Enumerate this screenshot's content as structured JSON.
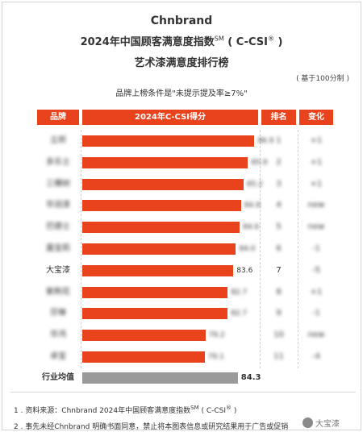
{
  "header": {
    "brand": "Chnbrand",
    "title_line1": "2024年中国顾客满意度指数",
    "title_sm": "SM",
    "title_code": "( C-CSI",
    "title_reg": "®",
    "title_close": " )",
    "title_line2": "艺术漆满意度排行榜",
    "basis": "( 基于100分制 )",
    "condition": "品牌上榜条件是\"未提示提及率≥7%\""
  },
  "table_headers": {
    "brand": "品牌",
    "score": "2024年C-CSI得分",
    "rank": "排名",
    "change": "变化"
  },
  "colors": {
    "accent": "#e8431c",
    "average_bar": "#9a9a9a"
  },
  "chart_data": {
    "type": "bar",
    "orientation": "horizontal",
    "title": "艺术漆满意度排行榜",
    "categories": [
      "立邦",
      "多乐士",
      "三棵树",
      "华润漆",
      "巴德士",
      "嘉宝莉",
      "大宝漆",
      "紫荆花",
      "芬琳",
      "华鸿",
      "卓宝",
      "行业均值"
    ],
    "values": [
      86.9,
      85.9,
      85.2,
      84.8,
      84.6,
      84.0,
      83.6,
      82.7,
      82.7,
      79.2,
      79.1,
      84.3
    ],
    "ranks": [
      "1",
      "2",
      "3",
      "4",
      "5",
      "6",
      "7",
      "8",
      "9",
      "10",
      "11",
      ""
    ],
    "changes": [
      "+1",
      "+1",
      "+1",
      "new",
      "new",
      "-1",
      "-5",
      "+1",
      "-1",
      "new",
      "-4",
      ""
    ],
    "legible": [
      false,
      false,
      false,
      false,
      false,
      false,
      true,
      false,
      false,
      false,
      false,
      true
    ],
    "value_labels": [
      "",
      "",
      "",
      "",
      "",
      "",
      "83.6",
      "",
      "",
      "",
      "",
      "84.3"
    ],
    "xlim": [
      0,
      100
    ],
    "grid": false,
    "legend": "none"
  },
  "footer": {
    "note1_prefix": "1 . 资料来源：Chnbrand 2024年中国顾客满意度指数",
    "note1_sm": "SM",
    "note1_mid": "( C-CSI",
    "note1_reg": "®",
    "note1_close": " )",
    "note2": "2 . 事先未经Chnbrand 明确书面同意，禁止将本图表信息或研究结果用于广告或促销",
    "watermark": "大宝漆",
    "watermark_icon": "wechat-icon"
  }
}
